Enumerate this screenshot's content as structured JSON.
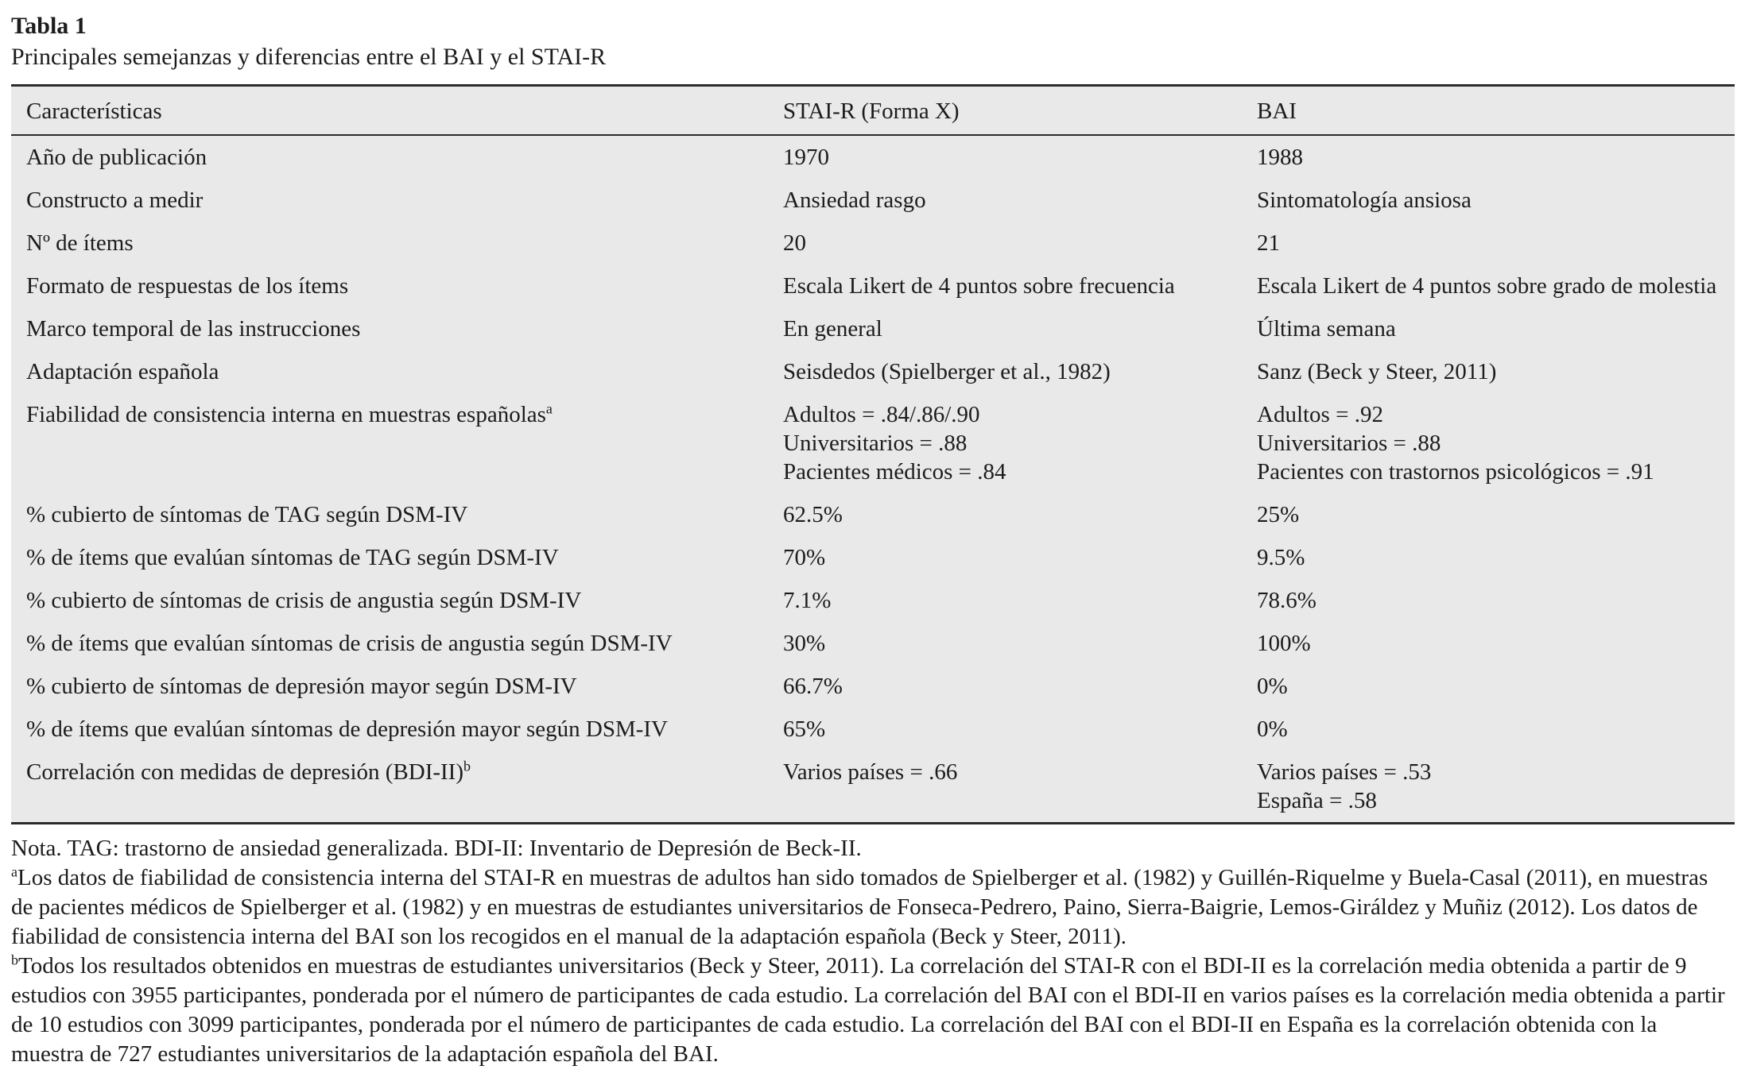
{
  "page": {
    "title": "Tabla 1",
    "subtitle": "Principales semejanzas y diferencias entre el BAI y el STAI-R"
  },
  "table": {
    "headers": [
      "Características",
      "STAI-R (Forma X)",
      "BAI"
    ],
    "rows": [
      {
        "label": "Año de publicación",
        "stai": "1970",
        "bai": "1988"
      },
      {
        "label": "Constructo a medir",
        "stai": "Ansiedad rasgo",
        "bai": "Sintomatología ansiosa"
      },
      {
        "label": "Nº de ítems",
        "stai": "20",
        "bai": "21"
      },
      {
        "label": "Formato de respuestas de los ítems",
        "stai": "Escala Likert de 4 puntos sobre frecuencia",
        "bai": "Escala Likert de 4 puntos sobre grado de molestia"
      },
      {
        "label": "Marco temporal de las instrucciones",
        "stai": "En general",
        "bai": "Última semana"
      },
      {
        "label": "Adaptación española",
        "stai": "Seisdedos (Spielberger et al., 1982)",
        "bai": "Sanz (Beck y Steer, 2011)"
      },
      {
        "label": "Fiabilidad de consistencia interna en muestras españolas",
        "sup": "a",
        "stai": "Adultos = .84/.86/.90\nUniversitarios = .88\nPacientes médicos = .84",
        "bai": "Adultos = .92\nUniversitarios = .88\nPacientes con trastornos psicológicos = .91"
      },
      {
        "label": "% cubierto de síntomas de TAG según DSM-IV",
        "stai": "62.5%",
        "bai": "25%"
      },
      {
        "label": "% de ítems que evalúan síntomas de TAG según DSM-IV",
        "stai": "70%",
        "bai": "9.5%"
      },
      {
        "label": "% cubierto de síntomas de crisis de angustia según DSM-IV",
        "stai": "7.1%",
        "bai": "78.6%"
      },
      {
        "label": "% de ítems que evalúan síntomas de crisis de angustia según DSM-IV",
        "stai": "30%",
        "bai": "100%"
      },
      {
        "label": "% cubierto de síntomas de depresión mayor según DSM-IV",
        "stai": "66.7%",
        "bai": "0%"
      },
      {
        "label": "% de ítems que evalúan síntomas de depresión mayor según DSM-IV",
        "stai": "65%",
        "bai": "0%"
      },
      {
        "label": "Correlación con medidas de depresión (BDI-II)",
        "sup": "b",
        "stai": "Varios países = .66",
        "bai": "Varios países = .53\nEspaña = .58"
      }
    ]
  },
  "notes": {
    "general": "Nota. TAG: trastorno de ansiedad generalizada. BDI-II: Inventario de Depresión de Beck-II.",
    "a_sup": "a",
    "a_text": "Los datos de fiabilidad de consistencia interna del STAI-R en muestras de adultos han sido tomados de Spielberger et al. (1982) y Guillén-Riquelme y Buela-Casal (2011), en muestras de pacientes médicos de Spielberger et al. (1982) y en muestras de estudiantes universitarios de Fonseca-Pedrero, Paino, Sierra-Baigrie, Lemos-Giráldez y Muñiz (2012). Los datos de fiabilidad de consistencia interna del BAI son los recogidos en el manual de la adaptación española (Beck y Steer, 2011).",
    "b_sup": "b",
    "b_text": "Todos los resultados obtenidos en muestras de estudiantes universitarios (Beck y Steer, 2011). La correlación del STAI-R con el BDI-II es la correlación media obtenida a partir de 9 estudios con 3955 participantes, ponderada por el número de participantes de cada estudio. La correlación del BAI con el BDI-II en varios países es la correlación media obtenida a partir de 10 estudios con 3099 participantes, ponderada por el número de participantes de cada estudio. La correlación del BAI con el BDI-II en España es la correlación obtenida con la muestra de 727 estudiantes universitarios de la adaptación española del BAI."
  },
  "colors": {
    "table_background": "#e9e9e9",
    "rule": "#2b2b2b",
    "text": "#1c1c1c"
  }
}
